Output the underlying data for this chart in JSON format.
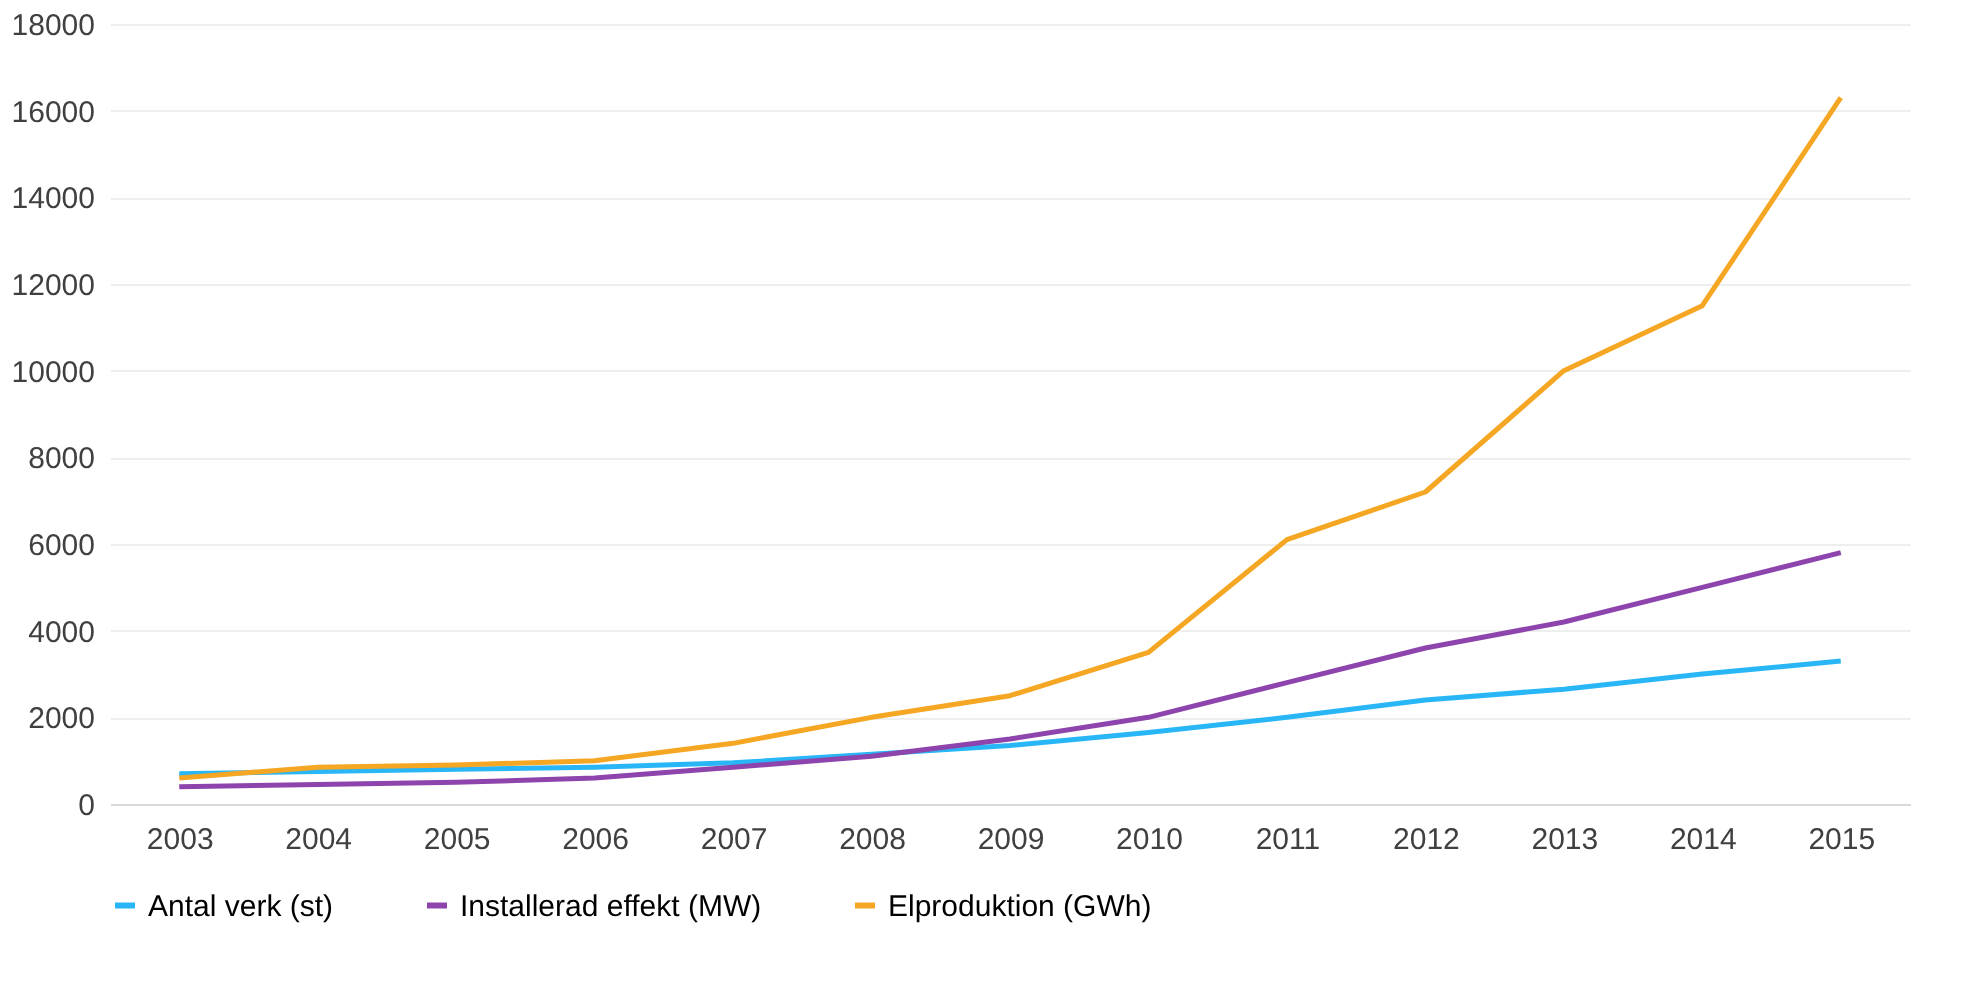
{
  "chart_data": {
    "type": "line",
    "categories": [
      "2003",
      "2004",
      "2005",
      "2006",
      "2007",
      "2008",
      "2009",
      "2010",
      "2011",
      "2012",
      "2013",
      "2014",
      "2015"
    ],
    "series": [
      {
        "name": "Antal verk (st)",
        "color": "#29b6f6",
        "values": [
          700,
          750,
          800,
          850,
          950,
          1150,
          1350,
          1650,
          2000,
          2400,
          2650,
          3000,
          3300
        ]
      },
      {
        "name": "Installerad effekt (MW)",
        "color": "#8e44ad",
        "values": [
          400,
          450,
          500,
          600,
          850,
          1100,
          1500,
          2000,
          2800,
          3600,
          4200,
          5000,
          5800
        ]
      },
      {
        "name": "Elproduktion (GWh)",
        "color": "#f5a623",
        "values": [
          600,
          850,
          900,
          1000,
          1400,
          2000,
          2500,
          3500,
          6100,
          7200,
          10000,
          11500,
          16300
        ]
      }
    ],
    "ylim": [
      0,
      18000
    ],
    "yticks": [
      0,
      2000,
      4000,
      6000,
      8000,
      10000,
      12000,
      14000,
      16000,
      18000
    ],
    "grid": "y",
    "legend": "bottom",
    "marker": "none",
    "line_style": "solid"
  }
}
